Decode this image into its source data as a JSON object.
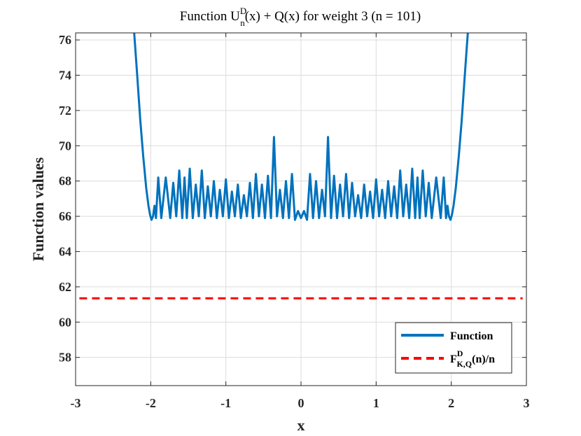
{
  "chart_data": {
    "type": "line",
    "title": {
      "prefix": "Function U",
      "sub": "n",
      "sup": "D",
      "suffix": "(x) + Q(x) for weight 3  (n = 101)"
    },
    "xlabel": "x",
    "ylabel": "Function values",
    "xlim": [
      -3,
      3
    ],
    "ylim": [
      56.4,
      76.4
    ],
    "xticks": [
      -3,
      -2,
      -1,
      0,
      1,
      2,
      3
    ],
    "xtick_labels": [
      "-3",
      "-2",
      "-1",
      "0",
      "1",
      "2",
      "3"
    ],
    "yticks": [
      58,
      60,
      62,
      64,
      66,
      68,
      70,
      72,
      74,
      76
    ],
    "ytick_labels": [
      "58",
      "60",
      "62",
      "64",
      "66",
      "68",
      "70",
      "72",
      "74",
      "76"
    ],
    "grid": true,
    "legend_position": "bottom-right",
    "series": [
      {
        "name": "Function",
        "style": "solid",
        "color": "#0072BD",
        "x": [
          -2.22,
          -2.18,
          -2.14,
          -2.1,
          -2.06,
          -2.03,
          -2.01,
          -1.99,
          -1.97,
          -1.95,
          -1.93,
          -1.9,
          -1.86,
          -1.8,
          -1.74,
          -1.7,
          -1.66,
          -1.62,
          -1.58,
          -1.55,
          -1.52,
          -1.48,
          -1.44,
          -1.4,
          -1.36,
          -1.32,
          -1.28,
          -1.24,
          -1.2,
          -1.16,
          -1.12,
          -1.08,
          -1.04,
          -1.0,
          -0.96,
          -0.92,
          -0.88,
          -0.84,
          -0.8,
          -0.76,
          -0.72,
          -0.68,
          -0.64,
          -0.6,
          -0.56,
          -0.52,
          -0.48,
          -0.44,
          -0.4,
          -0.36,
          -0.32,
          -0.28,
          -0.24,
          -0.2,
          -0.16,
          -0.12,
          -0.08,
          -0.04,
          0.0,
          0.04,
          0.08,
          0.12,
          0.16,
          0.2,
          0.24,
          0.28,
          0.32,
          0.36,
          0.4,
          0.44,
          0.48,
          0.52,
          0.56,
          0.6,
          0.64,
          0.68,
          0.72,
          0.76,
          0.8,
          0.84,
          0.88,
          0.92,
          0.96,
          1.0,
          1.04,
          1.08,
          1.12,
          1.16,
          1.2,
          1.24,
          1.28,
          1.32,
          1.36,
          1.4,
          1.44,
          1.48,
          1.52,
          1.55,
          1.58,
          1.62,
          1.66,
          1.7,
          1.74,
          1.8,
          1.86,
          1.9,
          1.93,
          1.95,
          1.97,
          1.99,
          2.01,
          2.03,
          2.06,
          2.1,
          2.14,
          2.18,
          2.22
        ],
        "y": [
          76.4,
          74.0,
          71.5,
          69.4,
          67.6,
          66.6,
          66.1,
          65.8,
          66.0,
          66.6,
          65.9,
          68.2,
          65.9,
          68.2,
          65.9,
          67.9,
          66.0,
          68.6,
          65.9,
          68.2,
          65.9,
          68.7,
          65.9,
          67.8,
          66.0,
          68.6,
          65.9,
          67.7,
          66.0,
          68.0,
          65.9,
          67.5,
          66.0,
          68.1,
          65.9,
          67.4,
          66.0,
          67.8,
          65.9,
          67.2,
          66.0,
          67.9,
          65.9,
          68.4,
          66.0,
          67.8,
          65.9,
          68.3,
          65.9,
          70.5,
          66.0,
          67.5,
          65.9,
          68.0,
          65.9,
          68.4,
          65.8,
          66.3,
          65.9,
          66.3,
          65.8,
          68.4,
          65.9,
          68.0,
          65.9,
          67.5,
          66.0,
          70.5,
          65.9,
          68.3,
          65.9,
          67.8,
          66.0,
          68.4,
          65.9,
          67.9,
          66.0,
          67.2,
          65.9,
          67.8,
          66.0,
          67.4,
          65.9,
          68.1,
          66.0,
          67.5,
          65.9,
          68.0,
          66.0,
          67.7,
          65.9,
          68.6,
          66.0,
          67.8,
          65.9,
          68.7,
          65.9,
          68.2,
          65.9,
          68.6,
          66.0,
          67.9,
          65.9,
          68.2,
          65.9,
          68.2,
          65.9,
          66.6,
          66.0,
          65.8,
          66.1,
          66.6,
          67.6,
          69.4,
          71.5,
          74.0,
          76.4
        ]
      },
      {
        "name": "F_{K,Q}^D(n)/n",
        "style": "dashed",
        "color": "#FF0000",
        "x": [
          -2.95,
          2.95
        ],
        "y": [
          61.35,
          61.35
        ]
      }
    ],
    "legend": {
      "function_label": "Function",
      "bound_label": {
        "prefix": "F",
        "sup": "D",
        "sub": "K,Q",
        "suffix": "(n)/n"
      }
    }
  }
}
